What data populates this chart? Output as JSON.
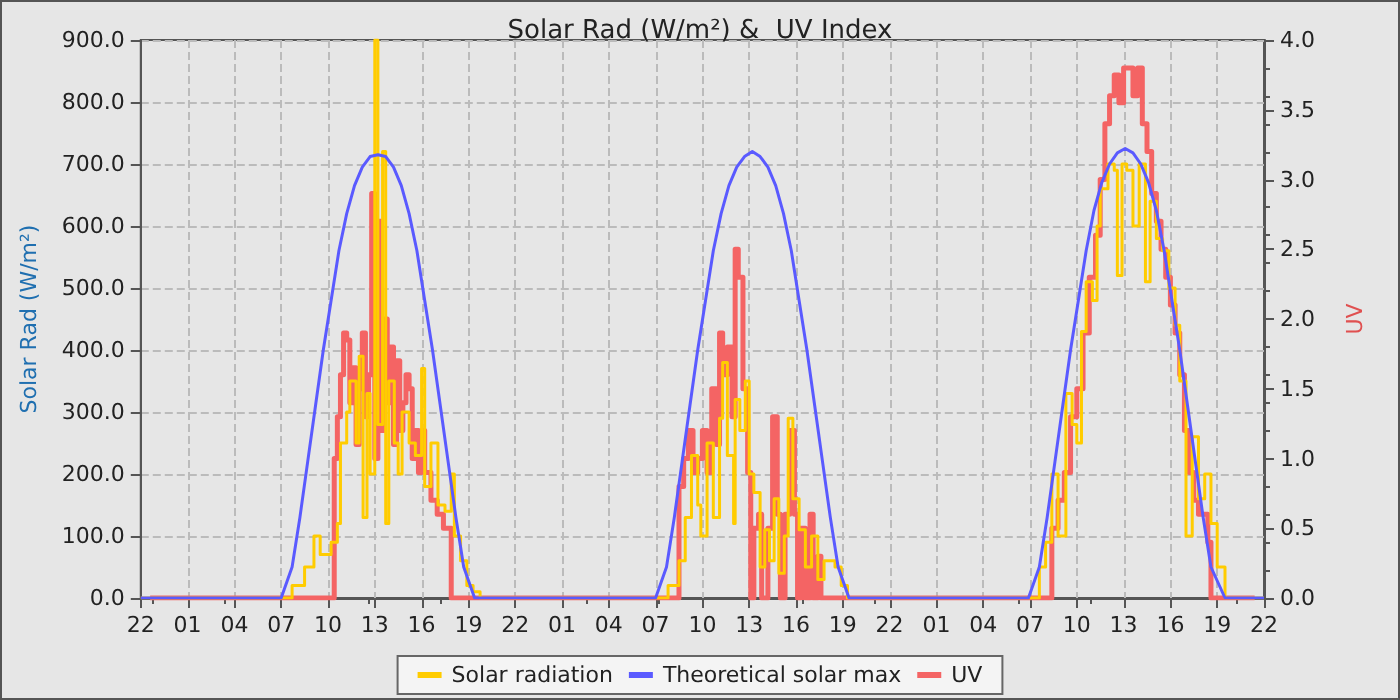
{
  "chart_data": {
    "type": "step",
    "title": "Solar Rad (W/m²) &  UV Index",
    "ylabel": "Solar Rad (W/m²)",
    "y2label": "UV",
    "xlim": [
      "--01-01T22:00",
      "--01-04T22:00"
    ],
    "xticks": [
      {
        "value": "--01-01T22:00",
        "label": "22"
      },
      {
        "value": "--01-02T01:00",
        "label": "01"
      },
      {
        "value": "--01-02T04:00",
        "label": "04"
      },
      {
        "value": "--01-02T07:00",
        "label": "07"
      },
      {
        "value": "--01-02T10:00",
        "label": "10"
      },
      {
        "value": "--01-02T13:00",
        "label": "13"
      },
      {
        "value": "--01-02T16:00",
        "label": "16"
      },
      {
        "value": "--01-02T19:00",
        "label": "19"
      },
      {
        "value": "--01-02T22:00",
        "label": "22"
      },
      {
        "value": "--01-03T01:00",
        "label": "01"
      },
      {
        "value": "--01-03T04:00",
        "label": "04"
      },
      {
        "value": "--01-03T07:00",
        "label": "07"
      },
      {
        "value": "--01-03T10:00",
        "label": "10"
      },
      {
        "value": "--01-03T13:00",
        "label": "13"
      },
      {
        "value": "--01-03T16:00",
        "label": "16"
      },
      {
        "value": "--01-03T19:00",
        "label": "19"
      },
      {
        "value": "--01-03T22:00",
        "label": "22"
      },
      {
        "value": "--01-04T01:00",
        "label": "01"
      },
      {
        "value": "--01-04T04:00",
        "label": "04"
      },
      {
        "value": "--01-04T07:00",
        "label": "07"
      },
      {
        "value": "--01-04T10:00",
        "label": "10"
      },
      {
        "value": "--01-04T13:00",
        "label": "13"
      },
      {
        "value": "--01-04T16:00",
        "label": "16"
      },
      {
        "value": "--01-04T19:00",
        "label": "19"
      },
      {
        "value": "--01-04T22:00",
        "label": "22"
      }
    ],
    "ylim": [
      0,
      900
    ],
    "yticks": [
      {
        "value": 0,
        "label": "0.0"
      },
      {
        "value": 100,
        "label": "100.0"
      },
      {
        "value": 200,
        "label": "200.0"
      },
      {
        "value": 300,
        "label": "300.0"
      },
      {
        "value": 400,
        "label": "400.0"
      },
      {
        "value": 500,
        "label": "500.0"
      },
      {
        "value": 600,
        "label": "600.0"
      },
      {
        "value": 700,
        "label": "700.0"
      },
      {
        "value": 800,
        "label": "800.0"
      },
      {
        "value": 900,
        "label": "900.0"
      }
    ],
    "y2lim": [
      0,
      4
    ],
    "y2ticks": [
      {
        "value": 0,
        "label": "0.0"
      },
      {
        "value": 0.5,
        "label": "0.5"
      },
      {
        "value": 1,
        "label": "1.0"
      },
      {
        "value": 1.5,
        "label": "1.5"
      },
      {
        "value": 2,
        "label": "2.0"
      },
      {
        "value": 2.5,
        "label": "2.5"
      },
      {
        "value": 3,
        "label": "3.0"
      },
      {
        "value": 3.5,
        "label": "3.5"
      },
      {
        "value": 4,
        "label": "4.0"
      }
    ],
    "grid": true,
    "legend": "bottom",
    "marker": "none",
    "series": [
      {
        "name": "Solar radiation",
        "color": "#ffcc00",
        "x": [
          "--01-01T22:00",
          "--01-02T07:00",
          "--01-02T07:42",
          "--01-02T08:30",
          "--01-02T09:06",
          "--01-02T09:30",
          "--01-02T10:12",
          "--01-02T10:36",
          "--01-02T10:48",
          "--01-02T11:12",
          "--01-02T11:24",
          "--01-02T11:48",
          "--01-02T12:00",
          "--01-02T12:15",
          "--01-02T12:30",
          "--01-02T12:42",
          "--01-02T13:00",
          "--01-02T13:12",
          "--01-02T13:30",
          "--01-02T13:42",
          "--01-02T13:54",
          "--01-02T14:15",
          "--01-02T14:30",
          "--01-02T14:45",
          "--01-02T15:12",
          "--01-02T15:36",
          "--01-02T16:00",
          "--01-02T16:12",
          "--01-02T16:36",
          "--01-02T17:03",
          "--01-02T17:30",
          "--01-02T17:54",
          "--01-02T18:06",
          "--01-02T18:30",
          "--01-02T18:54",
          "--01-02T19:18",
          "--01-02T19:45",
          "--01-03T07:00",
          "--01-03T07:48",
          "--01-03T08:30",
          "--01-03T08:54",
          "--01-03T09:18",
          "--01-03T09:42",
          "--01-03T09:54",
          "--01-03T10:18",
          "--01-03T10:42",
          "--01-03T11:06",
          "--01-03T11:18",
          "--01-03T11:36",
          "--01-03T12:00",
          "--01-03T12:06",
          "--01-03T12:24",
          "--01-03T12:45",
          "--01-03T13:00",
          "--01-03T13:18",
          "--01-03T13:42",
          "--01-03T14:00",
          "--01-03T14:18",
          "--01-03T14:36",
          "--01-03T14:54",
          "--01-03T15:15",
          "--01-03T15:30",
          "--01-03T15:48",
          "--01-03T16:12",
          "--01-03T16:36",
          "--01-03T17:00",
          "--01-03T17:24",
          "--01-03T17:48",
          "--01-03T18:30",
          "--01-03T18:54",
          "--01-03T19:18",
          "--01-04T07:00",
          "--01-04T07:36",
          "--01-04T08:00",
          "--01-04T08:24",
          "--01-04T08:48",
          "--01-04T09:18",
          "--01-04T09:42",
          "--01-04T10:00",
          "--01-04T10:18",
          "--01-04T10:36",
          "--01-04T11:00",
          "--01-04T11:18",
          "--01-04T11:30",
          "--01-04T12:00",
          "--01-04T12:24",
          "--01-04T12:36",
          "--01-04T12:54",
          "--01-04T13:12",
          "--01-04T13:36",
          "--01-04T14:00",
          "--01-04T14:24",
          "--01-04T14:42",
          "--01-04T15:06",
          "--01-04T15:30",
          "--01-04T15:54",
          "--01-04T16:18",
          "--01-04T16:36",
          "--01-04T17:00",
          "--01-04T17:24",
          "--01-04T17:48",
          "--01-04T18:12",
          "--01-04T18:36",
          "--01-04T19:00",
          "--01-04T19:30",
          "--01-04T22:00"
        ],
        "values": [
          0,
          0,
          20,
          50,
          100,
          70,
          90,
          120,
          250,
          300,
          350,
          250,
          390,
          130,
          330,
          200,
          900,
          280,
          720,
          120,
          350,
          250,
          200,
          300,
          250,
          230,
          370,
          180,
          250,
          150,
          140,
          200,
          100,
          60,
          20,
          10,
          0,
          0,
          20,
          60,
          130,
          230,
          150,
          100,
          250,
          130,
          290,
          380,
          230,
          120,
          320,
          270,
          350,
          200,
          170,
          50,
          110,
          60,
          160,
          40,
          100,
          290,
          160,
          110,
          50,
          100,
          30,
          60,
          50,
          20,
          0,
          0,
          50,
          90,
          200,
          100,
          330,
          280,
          250,
          430,
          510,
          480,
          600,
          660,
          700,
          690,
          520,
          700,
          690,
          600,
          700,
          510,
          640,
          580,
          560,
          500,
          440,
          350,
          100,
          260,
          160,
          200,
          120,
          50,
          0,
          0
        ]
      },
      {
        "name": "Theoretical solar max",
        "type": "line",
        "color": "#5a5aff",
        "x": [
          "--01-01T22:00",
          "--01-02T07:00",
          "--01-02T07:42",
          "--01-02T08:12",
          "--01-02T08:42",
          "--01-02T09:12",
          "--01-02T09:42",
          "--01-02T10:12",
          "--01-02T10:42",
          "--01-02T11:12",
          "--01-02T11:42",
          "--01-02T12:12",
          "--01-02T12:42",
          "--01-02T13:12",
          "--01-02T13:42",
          "--01-02T14:12",
          "--01-02T14:42",
          "--01-02T15:12",
          "--01-02T15:42",
          "--01-02T16:12",
          "--01-02T16:42",
          "--01-02T17:12",
          "--01-02T17:42",
          "--01-02T18:12",
          "--01-02T18:42",
          "--01-02T19:24",
          "--01-03T07:00",
          "--01-03T07:42",
          "--01-03T08:12",
          "--01-03T08:42",
          "--01-03T09:12",
          "--01-03T09:42",
          "--01-03T10:12",
          "--01-03T10:42",
          "--01-03T11:12",
          "--01-03T11:42",
          "--01-03T12:12",
          "--01-03T12:42",
          "--01-03T13:12",
          "--01-03T13:42",
          "--01-03T14:12",
          "--01-03T14:42",
          "--01-03T15:12",
          "--01-03T15:42",
          "--01-03T16:12",
          "--01-03T16:42",
          "--01-03T17:12",
          "--01-03T17:42",
          "--01-03T18:12",
          "--01-03T18:42",
          "--01-03T19:24",
          "--01-04T06:54",
          "--01-04T07:36",
          "--01-04T08:06",
          "--01-04T08:36",
          "--01-04T09:06",
          "--01-04T09:36",
          "--01-04T10:06",
          "--01-04T10:36",
          "--01-04T11:06",
          "--01-04T11:36",
          "--01-04T12:06",
          "--01-04T12:36",
          "--01-04T13:06",
          "--01-04T13:36",
          "--01-04T14:06",
          "--01-04T14:36",
          "--01-04T15:06",
          "--01-04T15:36",
          "--01-04T16:06",
          "--01-04T16:36",
          "--01-04T17:06",
          "--01-04T17:36",
          "--01-04T18:06",
          "--01-04T18:36",
          "--01-04T19:30",
          "--01-04T22:00"
        ],
        "values": [
          0,
          0,
          50,
          130,
          220,
          310,
          400,
          480,
          560,
          620,
          665,
          695,
          712,
          715,
          712,
          695,
          665,
          620,
          560,
          480,
          400,
          310,
          220,
          130,
          50,
          0,
          0,
          50,
          130,
          220,
          310,
          400,
          480,
          560,
          620,
          665,
          695,
          712,
          720,
          712,
          695,
          665,
          620,
          560,
          480,
          400,
          310,
          220,
          130,
          50,
          0,
          0,
          50,
          130,
          220,
          310,
          400,
          480,
          560,
          625,
          670,
          700,
          718,
          725,
          718,
          700,
          670,
          625,
          560,
          480,
          400,
          310,
          220,
          130,
          50,
          0,
          0
        ]
      },
      {
        "name": "UV",
        "axis": "y2",
        "color": "#f46464",
        "x": [
          "--01-01T22:36",
          "--01-02T10:24",
          "--01-02T10:36",
          "--01-02T10:48",
          "--01-02T11:00",
          "--01-02T11:12",
          "--01-02T11:24",
          "--01-02T11:36",
          "--01-02T11:48",
          "--01-02T12:00",
          "--01-02T12:12",
          "--01-02T12:24",
          "--01-02T12:36",
          "--01-02T12:48",
          "--01-02T13:00",
          "--01-02T13:12",
          "--01-02T13:24",
          "--01-02T13:36",
          "--01-02T13:48",
          "--01-02T14:00",
          "--01-02T14:12",
          "--01-02T14:24",
          "--01-02T14:36",
          "--01-02T14:48",
          "--01-02T15:00",
          "--01-02T15:12",
          "--01-02T15:24",
          "--01-02T15:36",
          "--01-02T15:48",
          "--01-02T16:00",
          "--01-02T16:12",
          "--01-02T16:36",
          "--01-02T17:00",
          "--01-02T17:24",
          "--01-02T17:54",
          "--01-03T08:30",
          "--01-03T08:48",
          "--01-03T09:06",
          "--01-03T09:24",
          "--01-03T09:42",
          "--01-03T10:00",
          "--01-03T10:18",
          "--01-03T10:36",
          "--01-03T10:54",
          "--01-03T11:06",
          "--01-03T11:18",
          "--01-03T11:36",
          "--01-03T11:54",
          "--01-03T12:06",
          "--01-03T12:18",
          "--01-03T12:36",
          "--01-03T12:54",
          "--01-03T13:06",
          "--01-03T13:18",
          "--01-03T13:36",
          "--01-03T13:48",
          "--01-03T14:12",
          "--01-03T14:30",
          "--01-03T14:48",
          "--01-03T15:00",
          "--01-03T15:18",
          "--01-03T15:36",
          "--01-03T15:54",
          "--01-03T16:06",
          "--01-03T16:18",
          "--01-03T16:36",
          "--01-03T16:54",
          "--01-03T17:06",
          "--01-03T17:24",
          "--01-03T17:36",
          "--01-04T08:24",
          "--01-04T08:48",
          "--01-04T09:12",
          "--01-04T09:36",
          "--01-04T10:00",
          "--01-04T10:24",
          "--01-04T10:48",
          "--01-04T11:12",
          "--01-04T11:30",
          "--01-04T11:48",
          "--01-04T12:06",
          "--01-04T12:24",
          "--01-04T12:42",
          "--01-04T13:00",
          "--01-04T13:18",
          "--01-04T13:36",
          "--01-04T13:54",
          "--01-04T14:12",
          "--01-04T14:30",
          "--01-04T14:48",
          "--01-04T15:06",
          "--01-04T15:24",
          "--01-04T15:42",
          "--01-04T16:00",
          "--01-04T16:18",
          "--01-04T16:36",
          "--01-04T16:54",
          "--01-04T17:12",
          "--01-04T17:30",
          "--01-04T17:48",
          "--01-04T18:06",
          "--01-04T18:24",
          "--01-04T18:36",
          "--01-04T21:24"
        ],
        "values": [
          0,
          1.0,
          1.3,
          1.6,
          1.9,
          1.85,
          1.4,
          1.65,
          1.1,
          1.5,
          1.9,
          1.3,
          1.6,
          2.9,
          1.0,
          2.7,
          1.2,
          2.0,
          1.4,
          1.8,
          1.1,
          1.7,
          1.2,
          1.4,
          1.6,
          1.5,
          1.0,
          1.2,
          0.9,
          1.2,
          0.9,
          0.7,
          0.6,
          0.5,
          0,
          0.8,
          1.0,
          1.2,
          0.9,
          1.0,
          1.2,
          0.9,
          1.5,
          1.1,
          1.9,
          1.6,
          1.8,
          1.3,
          2.5,
          2.3,
          1.5,
          0.9,
          0,
          0.5,
          0.6,
          0,
          0.5,
          1.3,
          0.6,
          0,
          0.6,
          1.2,
          0.6,
          0,
          0.5,
          0,
          0.6,
          0,
          0.3,
          0,
          0.5,
          0.7,
          0.9,
          1.3,
          1.5,
          1.9,
          2.3,
          2.6,
          3.0,
          3.4,
          3.6,
          3.75,
          3.55,
          3.8,
          3.8,
          3.6,
          3.8,
          3.4,
          3.2,
          2.9,
          2.7,
          2.5,
          2.3,
          2.1,
          1.9,
          1.6,
          1.2,
          0.9,
          0.7,
          0.6,
          0.6,
          0.4,
          0,
          0
        ]
      }
    ]
  }
}
